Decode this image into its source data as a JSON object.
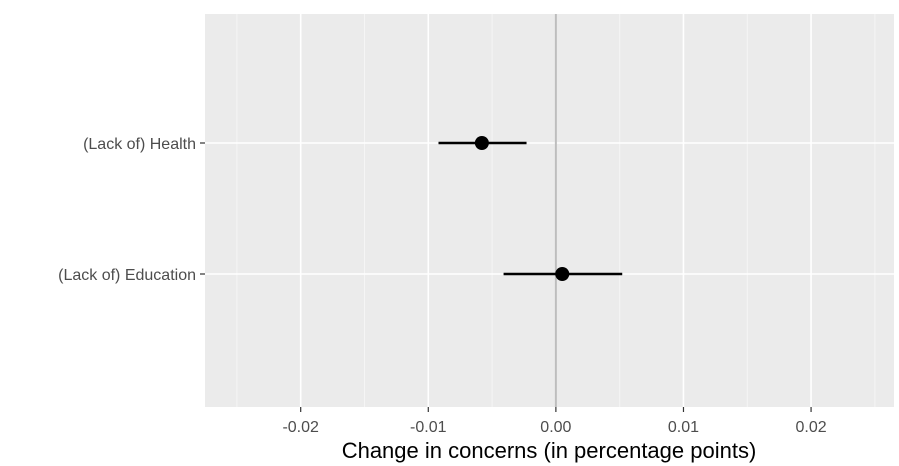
{
  "chart_data": {
    "type": "scatter",
    "title": "",
    "xlabel": "Change in concerns (in percentage points)",
    "ylabel": "",
    "xlim": [
      -0.0275,
      0.0265
    ],
    "x_ticks": [
      -0.02,
      -0.01,
      0.0,
      0.01,
      0.02
    ],
    "x_tick_labels": [
      "-0.02",
      "-0.01",
      "0.00",
      "0.01",
      "0.02"
    ],
    "categories": [
      "(Lack of) Health",
      "(Lack of) Education"
    ],
    "points": [
      {
        "category": "(Lack of) Health",
        "estimate": -0.0058,
        "lower": -0.0092,
        "upper": -0.0023
      },
      {
        "category": "(Lack of) Education",
        "estimate": 0.0005,
        "lower": -0.0041,
        "upper": 0.0052
      }
    ],
    "reference_line": 0,
    "grid": true,
    "legend": "none",
    "colors": {
      "panel": "#ebebeb",
      "grid_major": "#ffffff",
      "grid_minor": "#f5f5f5",
      "reference": "#bdbdbd",
      "point": "#000000",
      "tick_text": "#4d4d4d"
    }
  }
}
